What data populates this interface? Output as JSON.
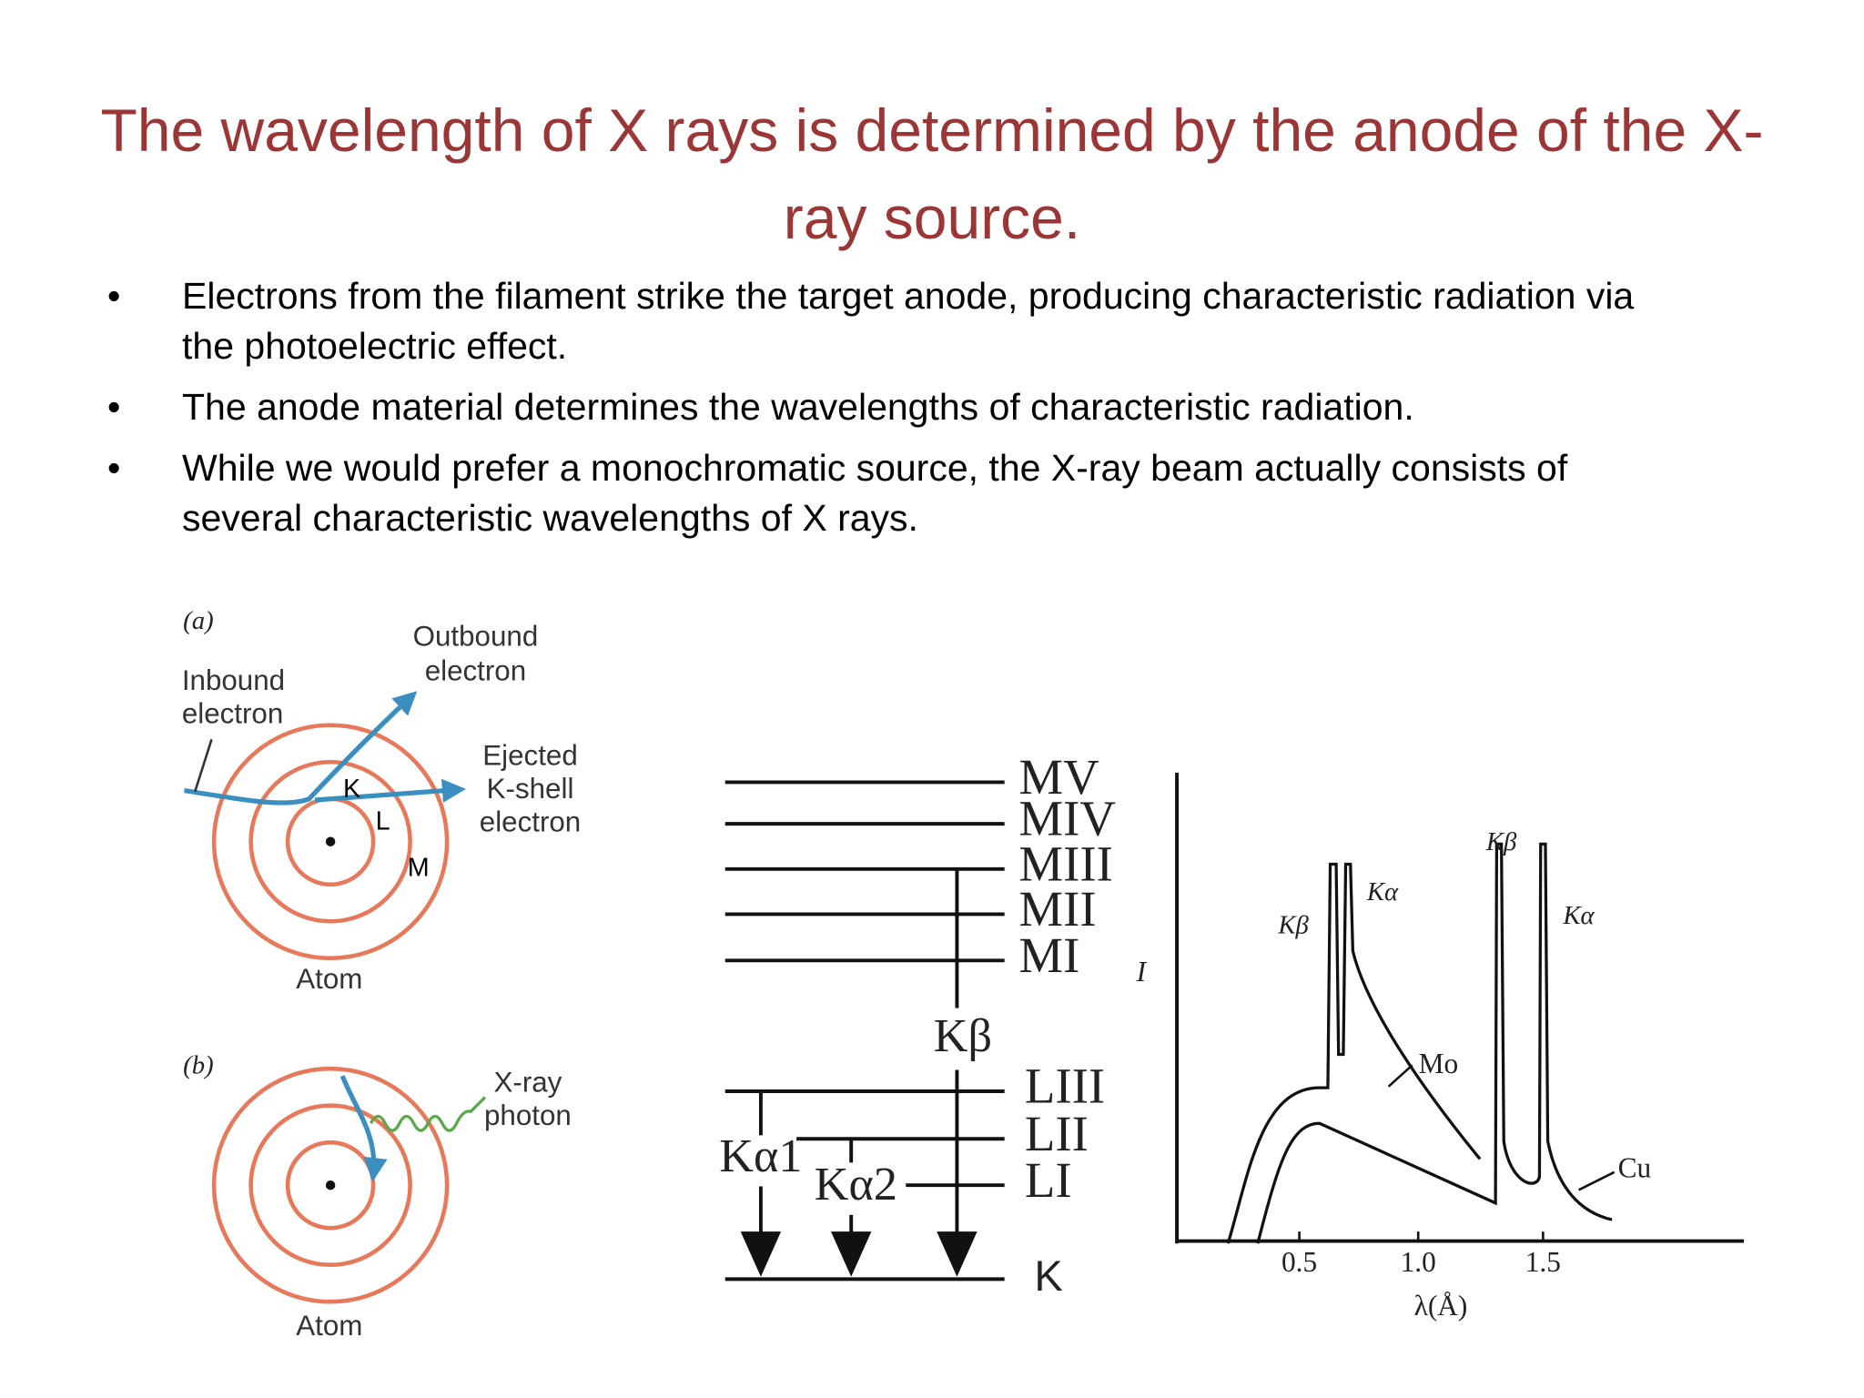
{
  "title": "The wavelength of X rays is determined by the anode of the X-ray source.",
  "bullets": [
    "Electrons from the filament strike the target anode, producing characteristic radiation via the photoelectric effect.",
    "The anode material determines the wavelengths of characteristic radiation.",
    "While we would prefer a monochromatic source, the X-ray beam actually consists of several characteristic wavelengths of X rays."
  ],
  "figure_a": {
    "panel": "(a)",
    "inbound": [
      "Inbound",
      "electron"
    ],
    "outbound": [
      "Outbound",
      "electron"
    ],
    "ejected": [
      "Ejected",
      "K-shell",
      "electron"
    ],
    "shells": [
      "K",
      "L",
      "M"
    ],
    "atom": "Atom"
  },
  "figure_b": {
    "panel": "(b)",
    "photon": [
      "X-ray",
      "photon"
    ],
    "atom": "Atom"
  },
  "energy_levels": {
    "levels": [
      "MV",
      "MIV",
      "MIII",
      "MII",
      "MI",
      "LIII",
      "LII",
      "LI",
      "K"
    ],
    "transitions": [
      "Kβ",
      "Kα1",
      "Kα2"
    ]
  },
  "spectrum": {
    "y_label": "I",
    "x_label": "λ(Å)",
    "x_ticks": [
      "0.5",
      "1.0",
      "1.5"
    ],
    "peaks": [
      "Kβ",
      "Kα",
      "Kβ",
      "Kα"
    ],
    "curves": [
      "Mo",
      "Cu"
    ]
  }
}
